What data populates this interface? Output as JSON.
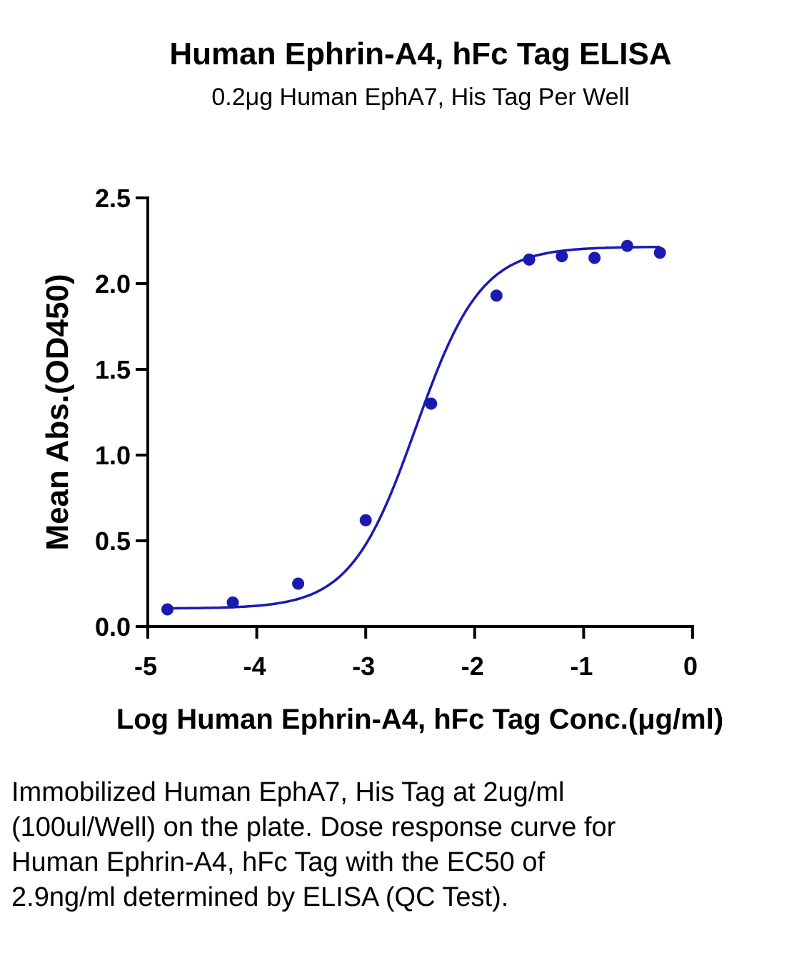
{
  "chart_data": {
    "type": "scatter",
    "title": "Human Ephrin-A4, hFc Tag ELISA",
    "subtitle": "0.2μg Human EphA7, His Tag Per Well",
    "xlabel": "Log Human Ephrin-A4, hFc Tag Conc.(μg/ml)",
    "ylabel": "Mean Abs.(OD450)",
    "xlim": [
      -5,
      0
    ],
    "ylim": [
      0,
      2.5
    ],
    "xticks": [
      "-5",
      "-4",
      "-3",
      "-2",
      "-1",
      "0"
    ],
    "yticks": [
      "0.0",
      "0.5",
      "1.0",
      "1.5",
      "2.0",
      "2.5"
    ],
    "grid": false,
    "color": "#1a1ab3",
    "points": {
      "x": [
        -4.82,
        -4.22,
        -3.62,
        -3.0,
        -2.4,
        -1.8,
        -1.5,
        -1.2,
        -0.9,
        -0.6,
        -0.3
      ],
      "y": [
        0.1,
        0.14,
        0.25,
        0.62,
        1.3,
        1.93,
        2.14,
        2.16,
        2.15,
        2.22,
        2.18
      ]
    },
    "curve": {
      "type": "4PL",
      "bottom": 0.105,
      "top": 2.215,
      "logEC50": -2.54,
      "hillslope": 1.45
    }
  },
  "caption": "Immobilized Human EphA7, His Tag at 2ug/ml (100ul/Well) on the plate. Dose response curve for Human Ephrin-A4, hFc Tag with the EC50 of 2.9ng/ml determined by ELISA (QC Test)."
}
